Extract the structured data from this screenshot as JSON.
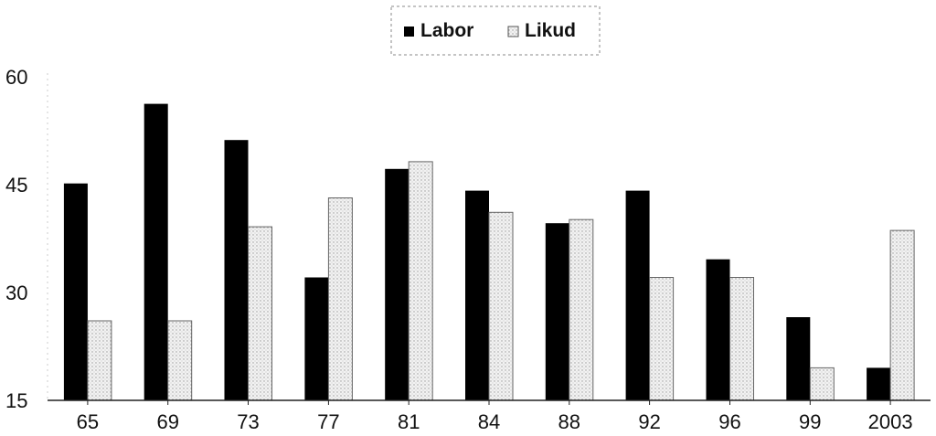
{
  "chart_data": {
    "type": "bar",
    "categories": [
      "65",
      "69",
      "73",
      "77",
      "81",
      "84",
      "88",
      "92",
      "96",
      "99",
      "2003"
    ],
    "series": [
      {
        "name": "Labor",
        "color": "#000000",
        "values": [
          45,
          56,
          51,
          32,
          47,
          44,
          39.5,
          44,
          34.5,
          26.5,
          19.5
        ]
      },
      {
        "name": "Likud",
        "color": "#ececec",
        "values": [
          26,
          26,
          39,
          43,
          48,
          41,
          40,
          32,
          32,
          19.5,
          38.5
        ]
      }
    ],
    "yticks": [
      "60",
      "45",
      "30",
      "15"
    ],
    "ylim": [
      15,
      60
    ],
    "grid": false,
    "legend_position": "top-center"
  }
}
